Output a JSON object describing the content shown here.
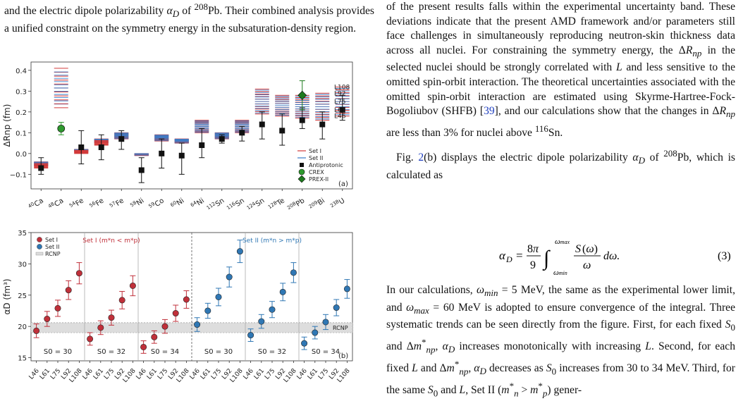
{
  "left_text": "and the electric dipole polarizability αD of 208Pb. Their combined analysis provides a unified constraint on the symmetry energy in the subsaturation-density region.",
  "right_para1": "of the present results falls within the experimental uncertainty band. These deviations indicate that the present AMD framework and/or parameters still face challenges in simultaneously reproducing neutron-skin thickness data across all nuclei. For constraining the symmetry energy, the ΔRnp in the selected nuclei should be strongly correlated with L and less sensitive to the omitted spin-orbit interaction. The theoretical uncertainties associated with the omitted spin-orbit interaction are estimated using Skyrme-Hartree-Fock-Bogoliubov (SHFB) [39], and our calculations show that the changes in ΔRnp are less than 3% for nuclei above 116Sn.",
  "right_para2": "Fig. 2(b) displays the electric dipole polarizability αD of 208Pb, which is calculated as",
  "equation": {
    "number": "(3)"
  },
  "right_para3": "In our calculations, ωmin = 5 MeV, the same as the experimental lower limit, and ωmax = 60 MeV is adopted to ensure convergence of the integral. Three systematic trends can be seen directly from the figure. First, for each fixed S0 and Δm*np, αD increases monotonically with increasing L. Second, for each fixed L and Δm*np, αD decreases as S0 increases from 30 to 34 MeV. Third, for the same S0 and L, Set II (m*n > m*p) gener-",
  "chart_data": [
    {
      "type": "scatter",
      "panel_label": "(a)",
      "ylabel": "ΔRnp (fm)",
      "ylim": [
        -0.17,
        0.44
      ],
      "yticks": [
        -0.1,
        0.0,
        0.1,
        0.2,
        0.3,
        0.4
      ],
      "categories": [
        "40Ca",
        "48Ca",
        "54Fe",
        "56Fe",
        "57Fe",
        "58Ni",
        "59Co",
        "60Ni",
        "64Ni",
        "112Sn",
        "116Sn",
        "124Sn",
        "128Te",
        "208Pb",
        "209Bi",
        "238U"
      ],
      "set_I_band": [
        [
          -0.07,
          -0.04
        ],
        [
          0.22,
          0.41
        ],
        [
          0.0,
          0.02
        ],
        [
          0.04,
          0.07
        ],
        [
          0.07,
          0.1
        ],
        [
          -0.01,
          0.0
        ],
        [
          0.06,
          0.09
        ],
        [
          0.05,
          0.07
        ],
        [
          0.1,
          0.16
        ],
        [
          0.07,
          0.1
        ],
        [
          0.1,
          0.16
        ],
        [
          0.19,
          0.31
        ],
        [
          0.18,
          0.28
        ],
        [
          0.17,
          0.28
        ],
        [
          0.16,
          0.29
        ],
        [
          0.18,
          0.32
        ]
      ],
      "set_II_band": [
        [
          -0.06,
          -0.04
        ],
        [
          0.23,
          0.4
        ],
        [
          0.01,
          0.02
        ],
        [
          0.05,
          0.07
        ],
        [
          0.07,
          0.1
        ],
        [
          -0.01,
          0.0
        ],
        [
          0.06,
          0.09
        ],
        [
          0.05,
          0.07
        ],
        [
          0.1,
          0.16
        ],
        [
          0.07,
          0.1
        ],
        [
          0.1,
          0.16
        ],
        [
          0.19,
          0.31
        ],
        [
          0.18,
          0.28
        ],
        [
          0.17,
          0.28
        ],
        [
          0.16,
          0.29
        ],
        [
          0.18,
          0.32
        ]
      ],
      "antiprotonic": [
        {
          "cat": "40Ca",
          "y": -0.07,
          "lo": -0.1,
          "hi": -0.02
        },
        {
          "cat": "54Fe",
          "y": 0.03,
          "lo": -0.05,
          "hi": 0.11
        },
        {
          "cat": "56Fe",
          "y": 0.03,
          "lo": -0.03,
          "hi": 0.09
        },
        {
          "cat": "57Fe",
          "y": 0.07,
          "lo": 0.02,
          "hi": 0.11
        },
        {
          "cat": "58Ni",
          "y": -0.08,
          "lo": -0.14,
          "hi": -0.02
        },
        {
          "cat": "59Co",
          "y": 0.0,
          "lo": -0.07,
          "hi": 0.07
        },
        {
          "cat": "60Ni",
          "y": -0.01,
          "lo": -0.1,
          "hi": 0.05
        },
        {
          "cat": "64Ni",
          "y": 0.04,
          "lo": -0.02,
          "hi": 0.12
        },
        {
          "cat": "112Sn",
          "y": 0.07,
          "lo": 0.05,
          "hi": 0.09
        },
        {
          "cat": "116Sn",
          "y": 0.1,
          "lo": 0.06,
          "hi": 0.13
        },
        {
          "cat": "124Sn",
          "y": 0.14,
          "lo": 0.07,
          "hi": 0.2
        },
        {
          "cat": "128Te",
          "y": 0.11,
          "lo": 0.04,
          "hi": 0.19
        },
        {
          "cat": "208Pb",
          "y": 0.16,
          "lo": 0.12,
          "hi": 0.22
        },
        {
          "cat": "209Bi",
          "y": 0.14,
          "lo": 0.07,
          "hi": 0.2
        },
        {
          "cat": "238U",
          "y": 0.21,
          "lo": 0.16,
          "hi": 0.28
        }
      ],
      "crex": {
        "cat": "48Ca",
        "y": 0.12,
        "lo": 0.09,
        "hi": 0.15
      },
      "prex2": {
        "cat": "208Pb",
        "y": 0.28,
        "lo": 0.21,
        "hi": 0.35
      },
      "line_labels": [
        "L108",
        "L92",
        "L75",
        "L61",
        "L46"
      ],
      "line_label_values": [
        0.32,
        0.29,
        0.25,
        0.21,
        0.18
      ],
      "legend": [
        "Set I",
        "Set II",
        "Antiprotonic",
        "CREX",
        "PREX-II"
      ]
    },
    {
      "type": "scatter",
      "panel_label": "(b)",
      "ylabel": "αD (fm³)",
      "ylim": [
        14.5,
        35
      ],
      "yticks": [
        15,
        20,
        25,
        30,
        35
      ],
      "categories": [
        "L46",
        "L61",
        "L75",
        "L92",
        "L108",
        "L46",
        "L61",
        "L75",
        "L92",
        "L108",
        "L46",
        "L61",
        "L75",
        "L92",
        "L108",
        "L46",
        "L61",
        "L75",
        "L92",
        "L108",
        "L46",
        "L61",
        "L75",
        "L92",
        "L108",
        "L46",
        "L61",
        "L75",
        "L92",
        "L108"
      ],
      "series": [
        {
          "name": "Set I",
          "values": [
            19.3,
            21.2,
            22.9,
            25.8,
            28.5,
            18.0,
            19.8,
            21.4,
            24.2,
            26.5,
            16.7,
            18.3,
            20.0,
            22.1,
            24.3
          ]
        },
        {
          "name": "Set II",
          "values": [
            20.3,
            22.5,
            24.7,
            27.9,
            32.0,
            18.6,
            20.8,
            22.7,
            25.5,
            28.6,
            17.3,
            19.0,
            20.7,
            23.0,
            26.0
          ]
        }
      ],
      "errors": [
        [
          1.1,
          1.2,
          1.3,
          1.5,
          1.7,
          1.0,
          1.1,
          1.2,
          1.4,
          1.6,
          1.0,
          1.0,
          1.1,
          1.3,
          1.4
        ],
        [
          1.1,
          1.2,
          1.4,
          1.6,
          1.8,
          1.0,
          1.1,
          1.3,
          1.4,
          1.6,
          1.0,
          1.0,
          1.2,
          1.3,
          1.5
        ]
      ],
      "rcnp_band": [
        19.0,
        20.6
      ],
      "group_labels": [
        "S0 = 30",
        "S0 = 32",
        "S0 = 34",
        "S0 = 30",
        "S0 = 32",
        "S0 = 34"
      ],
      "set_labels": [
        "Set I (m*n < m*p)",
        "Set II (m*n > m*p)"
      ],
      "rcnp_label": "RCNP",
      "legend": [
        "Set I",
        "Set II",
        "RCNP"
      ]
    }
  ],
  "colors": {
    "set1": "#c0303a",
    "set2": "#2f77b4",
    "crex": "#2e9a2e",
    "prex": "#1e7a1e",
    "set1_line": "#d33a3a",
    "set2_line": "#3a7cc8"
  }
}
